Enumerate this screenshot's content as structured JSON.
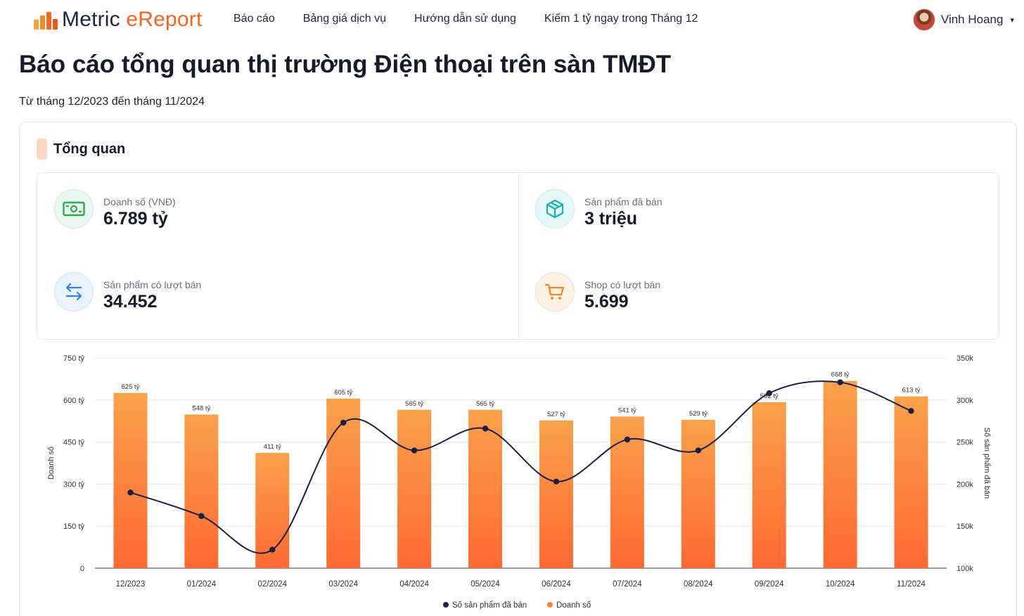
{
  "header": {
    "logo_text_1": "Metric ",
    "logo_text_2": "eReport",
    "nav": [
      "Báo cáo",
      "Bảng giá dịch vụ",
      "Hướng dẫn sử dụng",
      "Kiếm 1 tỷ ngay trong Tháng 12"
    ],
    "user_name": "Vinh Hoang",
    "caret": "▾"
  },
  "page": {
    "title": "Báo cáo tổng quan thị trường Điện thoại trên sàn TMĐT",
    "subtitle": "Từ tháng 12/2023 đến tháng 11/2024"
  },
  "overview": {
    "title": "Tổng quan",
    "kpis": [
      {
        "label": "Doanh số (VNĐ)",
        "value": "6.789 tỷ",
        "icon": "money-icon",
        "color": "#2fa84f"
      },
      {
        "label": "Sản phẩm đã bán",
        "value": "3 triệu",
        "icon": "box-icon",
        "color": "#1ab0b8"
      },
      {
        "label": "Sản phẩm có lượt bán",
        "value": "34.452",
        "icon": "swap-icon",
        "color": "#2f86d6"
      },
      {
        "label": "Shop có lượt bán",
        "value": "5.699",
        "icon": "cart-icon",
        "color": "#f0892a"
      }
    ]
  },
  "chart_data": {
    "type": "bar+line",
    "categories": [
      "12/2023",
      "01/2024",
      "02/2024",
      "03/2024",
      "04/2024",
      "05/2024",
      "06/2024",
      "07/2024",
      "08/2024",
      "09/2024",
      "10/2024",
      "11/2024"
    ],
    "series": [
      {
        "name": "Doanh số",
        "type": "bar",
        "axis": "left",
        "values": [
          625,
          548,
          411,
          605,
          565,
          565,
          527,
          541,
          529,
          592,
          668,
          613
        ],
        "labels": [
          "625 tỷ",
          "548 tỷ",
          "411 tỷ",
          "605 tỷ",
          "565 tỷ",
          "565 tỷ",
          "527 tỷ",
          "541 tỷ",
          "529 tỷ",
          "592 tỷ",
          "668 tỷ",
          "613 tỷ"
        ],
        "color": "#f7843a"
      },
      {
        "name": "Số sản phẩm đã bán",
        "type": "line",
        "axis": "right",
        "values": [
          190000,
          162000,
          122000,
          273000,
          240000,
          266000,
          203000,
          253000,
          240000,
          308000,
          321000,
          287000
        ],
        "color": "#1c1f45"
      }
    ],
    "ylabel_left": "Doanh số",
    "ylabel_right": "Số sản phẩm đã bán",
    "ylim_left": [
      0,
      750
    ],
    "ylim_right": [
      100000,
      350000
    ],
    "yticks_left": [
      "0",
      "150 tỷ",
      "300 tỷ",
      "450 tỷ",
      "600 tỷ",
      "750 tỷ"
    ],
    "yticks_right": [
      "100k",
      "150k",
      "200k",
      "250k",
      "300k",
      "350k"
    ],
    "grid": true,
    "legend_position": "bottom-center"
  }
}
